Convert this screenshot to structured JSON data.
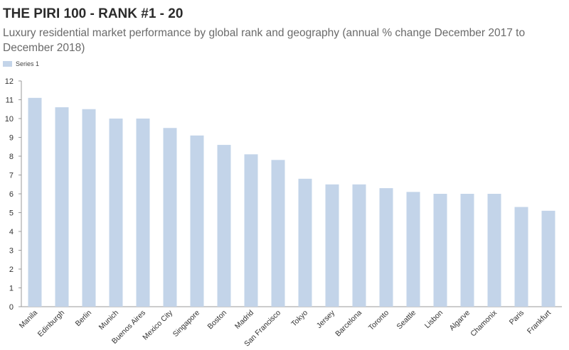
{
  "title": "THE PIRI 100 - RANK #1 - 20",
  "subtitle": "Luxury residential market performance by global rank and geography (annual % change December 2017 to December 2018)",
  "colors": {
    "bar": "#c3d4e9",
    "axis": "#9a9a9a",
    "tick_text": "#333333"
  },
  "chart_data": {
    "type": "bar",
    "title": "THE PIRI 100 - RANK #1 - 20",
    "subtitle": "Luxury residential market performance by global rank and geography (annual % change December 2017 to December 2018)",
    "xlabel": "",
    "ylabel": "",
    "ylim": [
      0,
      12
    ],
    "yticks": [
      0,
      1,
      2,
      3,
      4,
      5,
      6,
      7,
      8,
      9,
      10,
      11,
      12
    ],
    "grid": false,
    "legend_position": "top-left",
    "categories": [
      "Manila",
      "Edinburgh",
      "Berlin",
      "Munich",
      "Buenos Aires",
      "Mexico City",
      "Singapore",
      "Boston",
      "Madrid",
      "San Francisco",
      "Tokyo",
      "Jersey",
      "Barcelona",
      "Toronto",
      "Seattle",
      "Lisbon",
      "Algarve",
      "Chamonix",
      "Paris",
      "Frankfurt"
    ],
    "series": [
      {
        "name": "Series 1",
        "values": [
          11.1,
          10.6,
          10.5,
          10.0,
          10.0,
          9.5,
          9.1,
          8.6,
          8.1,
          7.8,
          6.8,
          6.5,
          6.5,
          6.3,
          6.1,
          6.0,
          6.0,
          6.0,
          5.3,
          5.1
        ]
      }
    ]
  }
}
